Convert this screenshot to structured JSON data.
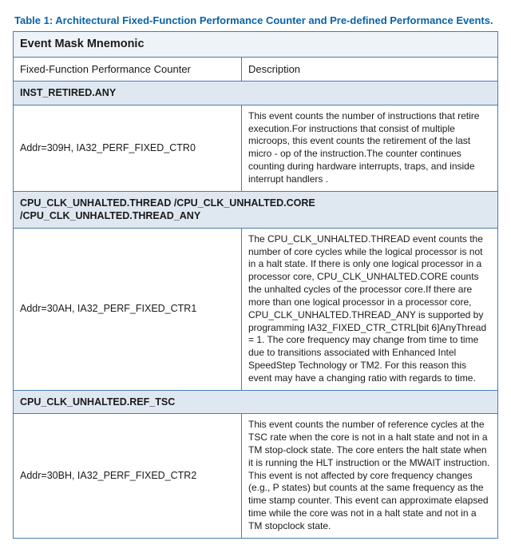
{
  "caption": "Table 1: Architectural Fixed-Function Performance Counter and Pre-defined Performance Events.",
  "header": {
    "main": "Event Mask Mnemonic",
    "col1": "Fixed-Function Performance Counter",
    "col2": "Description"
  },
  "sections": [
    {
      "title": "INST_RETIRED.ANY",
      "addr": "Addr=309H, IA32_PERF_FIXED_CTR0",
      "desc": "This event counts the number of instructions that retire execution.For instructions that consist of multiple microops, this event counts the retirement of the last micro - op of the instruction.The counter continues counting during hardware interrupts, traps, and inside interrupt handlers ."
    },
    {
      "title": "CPU_CLK_UNHALTED.THREAD /CPU_CLK_UNHALTED.CORE /CPU_CLK_UNHALTED.THREAD_ANY",
      "addr": "Addr=30AH, IA32_PERF_FIXED_CTR1",
      "desc": "The CPU_CLK_UNHALTED.THREAD event counts the number of core cycles while the logical processor is not in a halt state. If there is only one logical processor in a processor core, CPU_CLK_UNHALTED.CORE counts the unhalted cycles of the processor core.If there are more than one logical processor in a processor core, CPU_CLK_UNHALTED.THREAD_ANY is supported by programming IA32_FIXED_CTR_CTRL[bit 6]AnyThread = 1. The core frequency may change from time to time due to transitions associated with Enhanced Intel SpeedStep Technology or TM2. For this reason this event may have a changing ratio with regards to time."
    },
    {
      "title": "CPU_CLK_UNHALTED.REF_TSC",
      "addr": "Addr=30BH, IA32_PERF_FIXED_CTR2",
      "desc": "This event counts the number of reference cycles at the TSC rate when the core is not in a halt state and not in a TM stop-clock state. The core enters the halt state when it is running the HLT instruction or the MWAIT instruction. This event is not affected by core frequency changes (e.g., P states) but counts at the same frequency as the time stamp counter. This event can approximate elapsed time while the core was not in a halt state and not in a TM stopclock state."
    }
  ],
  "colors": {
    "caption": "#0a63a8",
    "border": "#4a7cb0",
    "section_bg": "#dfe8f1",
    "header_bg": "#eef3f8"
  }
}
